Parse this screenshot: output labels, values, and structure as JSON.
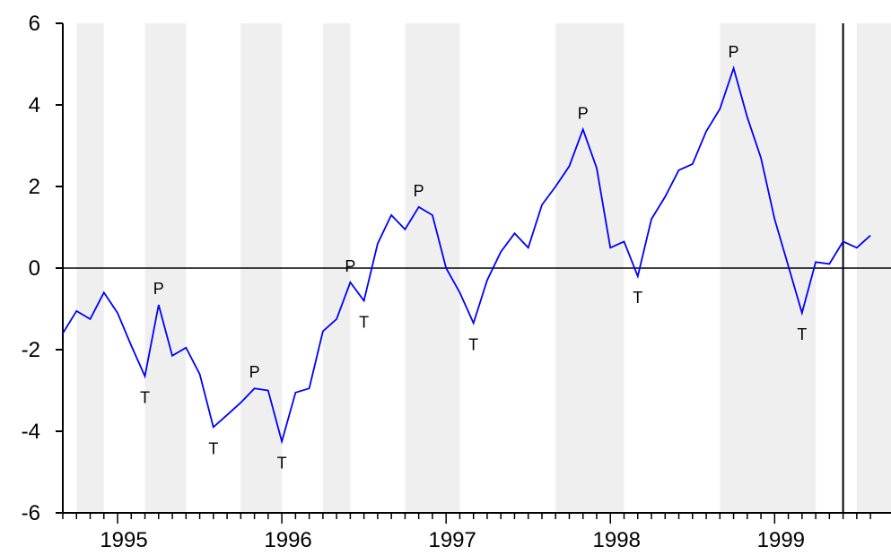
{
  "chart_data": {
    "type": "line",
    "categories": [
      null,
      null,
      null,
      null,
      "1995",
      null,
      null,
      null,
      null,
      null,
      null,
      null,
      null,
      null,
      null,
      null,
      "1996",
      null,
      null,
      null,
      null,
      null,
      null,
      null,
      null,
      null,
      null,
      null,
      "1997",
      null,
      null,
      null,
      null,
      null,
      null,
      null,
      null,
      null,
      null,
      null,
      "1998",
      null,
      null,
      null,
      null,
      null,
      null,
      null,
      null,
      null,
      null,
      null,
      "1999",
      null,
      null,
      null,
      null,
      null,
      null,
      null
    ],
    "series": [
      {
        "color": "#0000ff",
        "values": [
          -1.6,
          -1.05,
          -1.25,
          -0.6,
          -1.1,
          -1.9,
          -2.65,
          -0.9,
          -2.15,
          -1.95,
          -2.6,
          -3.9,
          -3.6,
          -3.3,
          -2.95,
          -3.0,
          -4.25,
          -3.05,
          -2.95,
          -1.55,
          -1.25,
          -0.35,
          -0.8,
          0.6,
          1.3,
          0.95,
          1.5,
          1.3,
          0.0,
          -0.6,
          -1.35,
          -0.3,
          0.4,
          0.85,
          0.5,
          1.55,
          2.0,
          2.5,
          3.4,
          2.45,
          0.5,
          0.65,
          -0.2,
          1.2,
          1.75,
          2.4,
          2.55,
          3.35,
          3.9,
          4.9,
          3.7,
          2.7,
          1.2,
          0.05,
          -1.1,
          0.15,
          0.1,
          0.65,
          0.5,
          0.8
        ],
        "point_labels": [
          null,
          null,
          null,
          null,
          null,
          null,
          "T",
          "P",
          null,
          null,
          null,
          "T",
          null,
          null,
          "P",
          null,
          "T",
          null,
          null,
          null,
          null,
          "P",
          "T",
          null,
          null,
          null,
          "P",
          null,
          null,
          null,
          "T",
          null,
          null,
          null,
          null,
          null,
          null,
          null,
          "P",
          null,
          null,
          null,
          "T",
          null,
          null,
          null,
          null,
          null,
          null,
          "P",
          null,
          null,
          null,
          null,
          "T",
          null,
          null,
          null,
          null,
          null
        ]
      }
    ],
    "shaded_ranges": [
      [
        1,
        3
      ],
      [
        6,
        9
      ],
      [
        13,
        16
      ],
      [
        19,
        21
      ],
      [
        25,
        29
      ],
      [
        36,
        41
      ],
      [
        48,
        55
      ],
      [
        58,
        60
      ]
    ],
    "shade_color": "#efefef",
    "vline_index": 57,
    "hline": 0,
    "ylim": [
      -6,
      6
    ],
    "yticks": [
      -6,
      -4,
      -2,
      0,
      2,
      4,
      6
    ]
  }
}
